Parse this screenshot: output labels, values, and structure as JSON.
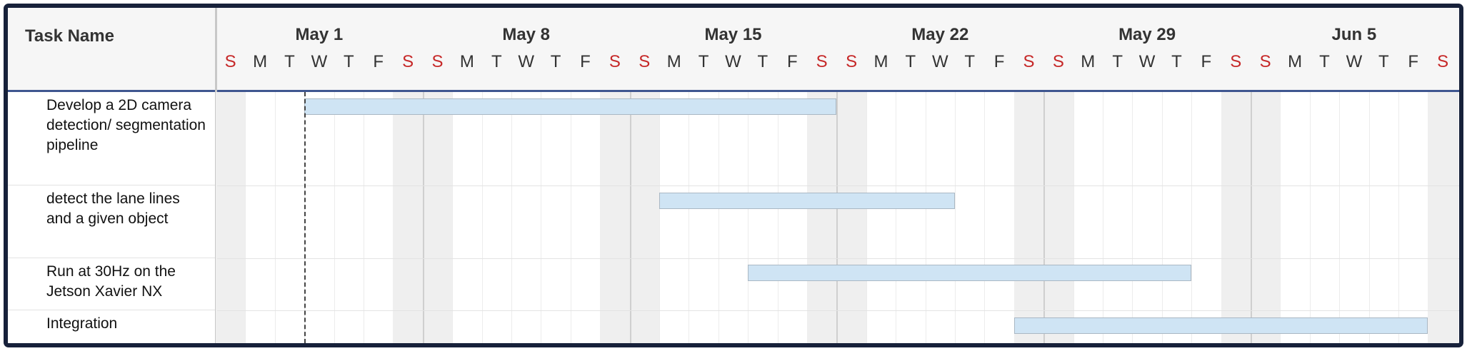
{
  "task_column": {
    "header": "Task Name"
  },
  "weeks": [
    "May 1",
    "May 8",
    "May 15",
    "May 22",
    "May 29",
    "Jun 5"
  ],
  "day_letters": [
    "S",
    "M",
    "T",
    "W",
    "T",
    "F",
    "S",
    "S",
    "M",
    "T",
    "W",
    "T",
    "F",
    "S",
    "S",
    "M",
    "T",
    "W",
    "T",
    "F",
    "S",
    "S",
    "M",
    "T",
    "W",
    "T",
    "F",
    "S",
    "S",
    "M",
    "T",
    "W",
    "T",
    "F",
    "S",
    "S",
    "M",
    "T",
    "W",
    "T",
    "F",
    "S"
  ],
  "tasks": [
    {
      "name": "Develop a 2D camera detection/ segmentation pipeline",
      "start_day": 3,
      "end_day": 20
    },
    {
      "name": "detect the lane lines and a given object",
      "start_day": 15,
      "end_day": 24
    },
    {
      "name": "Run at 30Hz on the Jetson Xavier NX",
      "start_day": 18,
      "end_day": 32
    },
    {
      "name": "Integration",
      "start_day": 27,
      "end_day": 40
    }
  ],
  "today_day_index": 3,
  "colors": {
    "bar_fill": "#cfe4f4",
    "bar_border": "#aab8c4",
    "weekend_letter": "#c62828",
    "header_border": "#3f5690",
    "frame": "#17213a"
  }
}
